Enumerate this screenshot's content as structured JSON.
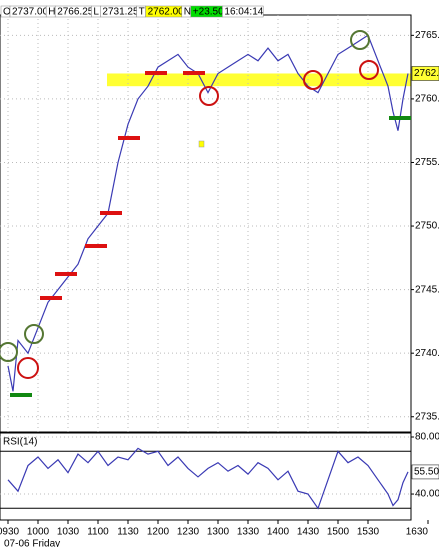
{
  "chart_data": [
    {
      "type": "line",
      "quote": [
        {
          "label": "O",
          "value": "2737.00"
        },
        {
          "label": "H",
          "value": "2766.25"
        },
        {
          "label": "L",
          "value": "2731.25"
        },
        {
          "label": "T",
          "value": "2762.00",
          "color": "#ffff00"
        },
        {
          "label": "N",
          "value": "+23.50",
          "color": "#00dd00"
        },
        {
          "value": "16:04:14"
        }
      ],
      "x": [
        570,
        575,
        580,
        590,
        600,
        610,
        620,
        630,
        640,
        650,
        660,
        670,
        680,
        690,
        700,
        710,
        720,
        730,
        740,
        750,
        760,
        770,
        780,
        790,
        800,
        810,
        820,
        830,
        840,
        850,
        860,
        870,
        880,
        890,
        900,
        910,
        920,
        930,
        940,
        950,
        955,
        960,
        965,
        970
      ],
      "series": [
        {
          "color": "#3a3ab4",
          "values": [
            2739,
            2737,
            2741,
            2740,
            2742,
            2744,
            2745,
            2746,
            2747,
            2749,
            2750,
            2751,
            2755,
            2758,
            2760,
            2761,
            2762.5,
            2763,
            2763.5,
            2762.5,
            2762,
            2760.5,
            2762,
            2762.5,
            2763,
            2763.5,
            2763,
            2764,
            2763,
            2763.5,
            2762,
            2761,
            2760.5,
            2762,
            2763.5,
            2764,
            2764.5,
            2765,
            2763,
            2761,
            2759,
            2757.5,
            2760,
            2762
          ]
        }
      ],
      "band": {
        "range": [
          2761,
          2762
        ],
        "x": [
          669,
          973
        ],
        "color": "#ffff33"
      },
      "last_price": {
        "value": 2762.0,
        "label": "2762.0"
      },
      "xlim": [
        562,
        990
      ],
      "xticks": [
        {
          "value": 570,
          "label": "0930"
        },
        {
          "value": 600,
          "label": "1000"
        },
        {
          "value": 630,
          "label": "1030"
        },
        {
          "value": 660,
          "label": "1100"
        },
        {
          "value": 690,
          "label": "1130"
        },
        {
          "value": 720,
          "label": "1200"
        },
        {
          "value": 750,
          "label": "1230"
        },
        {
          "value": 780,
          "label": "1300"
        },
        {
          "value": 810,
          "label": "1330"
        },
        {
          "value": 840,
          "label": "1400"
        },
        {
          "value": 870,
          "label": "1430"
        },
        {
          "value": 900,
          "label": "1500"
        },
        {
          "value": 930,
          "label": "1530"
        },
        {
          "value": 990,
          "label": "1630"
        }
      ],
      "x_sub_label": "07-06 Friday",
      "ylim": [
        2733.8,
        2766.6
      ],
      "yticks": [
        {
          "value": 2735,
          "label": "2735.0"
        },
        {
          "value": 2740,
          "label": "2740.0"
        },
        {
          "value": 2745,
          "label": "2745.0"
        },
        {
          "value": 2750,
          "label": "2750.0"
        },
        {
          "value": 2755,
          "label": "2755.0"
        },
        {
          "value": 2760,
          "label": "2760.0"
        },
        {
          "value": 2765,
          "label": "2765.0"
        }
      ],
      "grid": true
    },
    {
      "type": "line",
      "title": "RSI(14)",
      "x": [
        570,
        580,
        590,
        600,
        610,
        620,
        630,
        640,
        650,
        660,
        670,
        680,
        690,
        700,
        710,
        720,
        730,
        740,
        750,
        760,
        770,
        780,
        790,
        800,
        810,
        820,
        830,
        840,
        850,
        860,
        870,
        880,
        890,
        900,
        910,
        920,
        930,
        940,
        950,
        955,
        960,
        965,
        970
      ],
      "series": [
        {
          "color": "#3a3ab4",
          "values": [
            50,
            42,
            60,
            66,
            58,
            64,
            55,
            68,
            62,
            70,
            60,
            66,
            64,
            72,
            68,
            70,
            60,
            66,
            58,
            52,
            58,
            62,
            56,
            60,
            54,
            62,
            58,
            50,
            56,
            42,
            40,
            30,
            50,
            70,
            62,
            66,
            60,
            50,
            40,
            32,
            36,
            48,
            55.5
          ]
        }
      ],
      "last_value": {
        "value": 55.5,
        "label": "55.50"
      },
      "ref_lines": [
        70,
        30
      ],
      "xlim": [
        562,
        990
      ],
      "ylim": [
        21.8,
        82.8
      ],
      "yticks": [
        {
          "value": 80,
          "label": "80.00"
        },
        {
          "value": 40,
          "label": "40.00"
        }
      ],
      "grid": true
    }
  ]
}
